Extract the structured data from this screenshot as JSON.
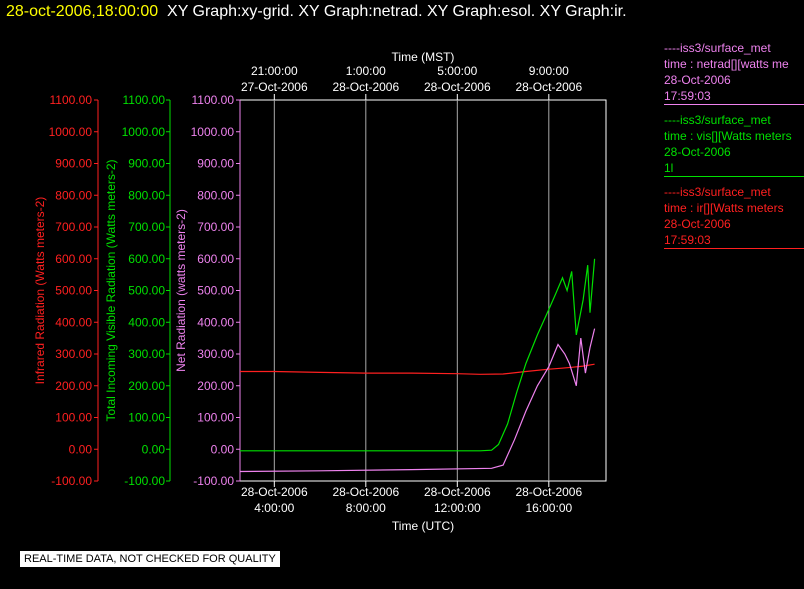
{
  "header": {
    "timestamp": "28-oct-2006,18:00:00",
    "graphs": "XY Graph:xy-grid.  XY Graph:netrad.  XY Graph:esol.  XY Graph:ir."
  },
  "colors": {
    "ir": "#ff2020",
    "vis": "#00e000",
    "net": "#ee82ee",
    "grid": "#aaaaaa",
    "title_timestamp": "#ffff00"
  },
  "legend": [
    {
      "color": "#ee82ee",
      "lines": [
        "----iss3/surface_met",
        "time : netrad[][watts me",
        "28-Oct-2006",
        "17:59:03"
      ]
    },
    {
      "color": "#00e000",
      "lines": [
        "----iss3/surface_met",
        "time : vis[][Watts meters",
        "28-Oct-2006",
        "1l"
      ]
    },
    {
      "color": "#ff2020",
      "lines": [
        "----iss3/surface_met",
        "time : ir[][Watts meters",
        "28-Oct-2006",
        "17:59:03"
      ]
    }
  ],
  "quality_note": "REAL-TIME DATA, NOT CHECKED FOR QUALITY",
  "chart_data": {
    "type": "line",
    "xlim_utc_hours": [
      2.5,
      18.5
    ],
    "ylim": [
      -100,
      1100
    ],
    "top_axis": {
      "label": "Time (MST)",
      "ticks": [
        {
          "x": 4,
          "line1": "21:00:00",
          "line2": "27-Oct-2006"
        },
        {
          "x": 8,
          "line1": "1:00:00",
          "line2": "28-Oct-2006"
        },
        {
          "x": 12,
          "line1": "5:00:00",
          "line2": "28-Oct-2006"
        },
        {
          "x": 16,
          "line1": "9:00:00",
          "line2": "28-Oct-2006"
        }
      ]
    },
    "bottom_axis": {
      "label": "Time (UTC)",
      "ticks": [
        {
          "x": 4,
          "line1": "28-Oct-2006",
          "line2": "4:00:00"
        },
        {
          "x": 8,
          "line1": "28-Oct-2006",
          "line2": "8:00:00"
        },
        {
          "x": 12,
          "line1": "28-Oct-2006",
          "line2": "12:00:00"
        },
        {
          "x": 16,
          "line1": "28-Oct-2006",
          "line2": "16:00:00"
        }
      ]
    },
    "y_ticks": [
      -100,
      0,
      100,
      200,
      300,
      400,
      500,
      600,
      700,
      800,
      900,
      1000,
      1100
    ],
    "y_tick_labels": [
      "-100.00",
      "0.00",
      "100.00",
      "200.00",
      "300.00",
      "400.00",
      "500.00",
      "600.00",
      "700.00",
      "800.00",
      "900.00",
      "1000.00",
      "1100.00"
    ],
    "y_axes": [
      {
        "key": "ir",
        "label": "Infrared Radiation (Watts meters-2)",
        "color": "#ff2020"
      },
      {
        "key": "vis",
        "label": "Total Incoming Visible Radiation (Watts meters-2)",
        "color": "#00e000"
      },
      {
        "key": "net",
        "label": "Net Radiation (watts meters-2)",
        "color": "#ee82ee"
      }
    ],
    "series": [
      {
        "key": "ir",
        "color": "#ff2020",
        "x": [
          2.5,
          4,
          6,
          8,
          10,
          12,
          13,
          14,
          15,
          16,
          16.5,
          17,
          17.5,
          18
        ],
        "y": [
          245,
          245,
          242,
          240,
          240,
          238,
          236,
          237,
          245,
          252,
          255,
          258,
          262,
          268
        ]
      },
      {
        "key": "vis",
        "color": "#00e000",
        "x": [
          2.5,
          6,
          10,
          13,
          13.5,
          13.8,
          14.2,
          14.6,
          15,
          15.5,
          16,
          16.3,
          16.6,
          16.8,
          17,
          17.2,
          17.5,
          17.7,
          17.8,
          18
        ],
        "y": [
          -5,
          -5,
          -5,
          -5,
          -3,
          15,
          80,
          180,
          270,
          360,
          440,
          490,
          540,
          500,
          560,
          360,
          470,
          580,
          430,
          600
        ]
      },
      {
        "key": "net",
        "color": "#ee82ee",
        "x": [
          2.5,
          6,
          10,
          13.5,
          14.0,
          14.5,
          15,
          15.5,
          16,
          16.4,
          16.7,
          16.9,
          17.2,
          17.4,
          17.6,
          17.8,
          18
        ],
        "y": [
          -70,
          -68,
          -64,
          -60,
          -50,
          30,
          120,
          200,
          260,
          330,
          300,
          270,
          200,
          350,
          240,
          320,
          380
        ]
      }
    ]
  }
}
